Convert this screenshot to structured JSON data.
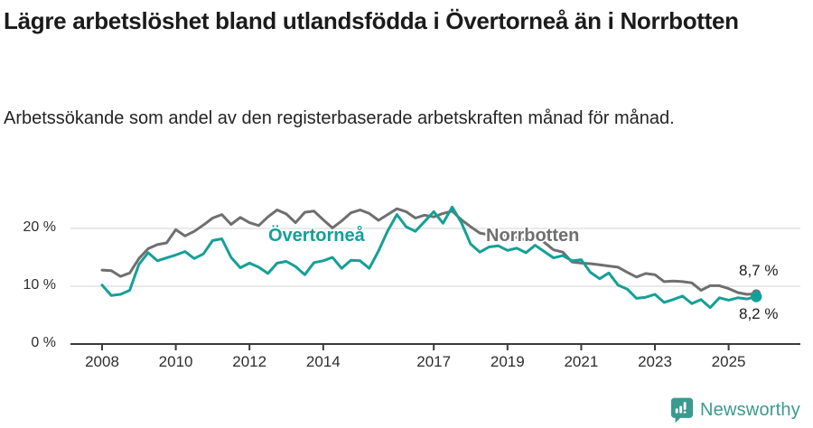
{
  "header": {
    "title": "Lägre arbetslöshet bland utlandsfödda i Övertorneå än i Norrbotten",
    "subtitle": "Arbetssökande som andel av den registerbaserade arbetskraften månad för månad."
  },
  "chart_data": {
    "type": "line",
    "title": "Lägre arbetslöshet bland utlandsfödda i Övertorneå än i Norrbotten",
    "xlabel": "",
    "ylabel": "Arbetssökande som andel av den registerbaserade arbetskraften",
    "x_unit": "year, quarterly sampled monthly series",
    "x_start": 2008.0,
    "x_step": 0.25,
    "x_end": 2025.75,
    "xlim": [
      2007.2,
      2026.4
    ],
    "ylim": [
      0,
      26
    ],
    "grid": "horizontal",
    "legend_position": "inline-labels",
    "x_ticks": [
      2008,
      2010,
      2012,
      2014,
      2017,
      2019,
      2021,
      2023,
      2025
    ],
    "y_ticks": [
      {
        "value": 0,
        "label": "0 %"
      },
      {
        "value": 10,
        "label": "10 %"
      },
      {
        "value": 20,
        "label": "20 %"
      }
    ],
    "series": [
      {
        "name": "Norrbotten",
        "color": "#6f6f6f",
        "end_label": "8,7 %",
        "end_value": 8.7,
        "values": [
          12.8,
          12.7,
          11.7,
          12.3,
          14.8,
          16.5,
          17.2,
          17.5,
          19.8,
          18.7,
          19.5,
          20.6,
          21.8,
          22.4,
          20.7,
          21.9,
          21.0,
          20.5,
          22.0,
          23.2,
          22.5,
          21.0,
          22.8,
          23.0,
          21.5,
          20.1,
          21.3,
          22.7,
          23.2,
          22.6,
          21.4,
          22.4,
          23.4,
          22.9,
          21.8,
          22.3,
          22.0,
          22.6,
          23.0,
          21.5,
          20.3,
          19.2,
          18.9,
          19.0,
          18.8,
          18.4,
          18.0,
          18.6,
          17.6,
          16.3,
          15.9,
          14.2,
          14.0,
          13.9,
          13.7,
          13.5,
          13.3,
          12.4,
          11.6,
          12.2,
          12.0,
          10.8,
          10.9,
          10.8,
          10.6,
          9.3,
          10.1,
          10.1,
          9.6,
          8.9,
          8.6,
          8.7
        ]
      },
      {
        "name": "Övertorneå",
        "color": "#14a096",
        "end_label": "8,2 %",
        "end_value": 8.2,
        "values": [
          10.2,
          8.4,
          8.6,
          9.3,
          13.8,
          15.8,
          14.4,
          14.9,
          15.4,
          16.0,
          14.8,
          15.6,
          17.9,
          18.2,
          15.0,
          13.2,
          14.0,
          13.3,
          12.2,
          14.0,
          14.3,
          13.4,
          12.0,
          14.1,
          14.4,
          15.0,
          13.1,
          14.5,
          14.4,
          13.1,
          16.1,
          19.6,
          22.4,
          20.3,
          19.5,
          21.2,
          22.9,
          20.9,
          23.7,
          21.0,
          17.3,
          15.9,
          16.8,
          17.0,
          16.2,
          16.6,
          15.8,
          17.1,
          16.0,
          14.9,
          15.3,
          14.4,
          14.6,
          12.4,
          11.3,
          12.3,
          10.2,
          9.5,
          7.9,
          8.1,
          8.6,
          7.2,
          7.7,
          8.3,
          7.0,
          7.7,
          6.3,
          8.0,
          7.6,
          8.0,
          7.8,
          8.2
        ]
      }
    ]
  },
  "footer": {
    "brand": "Newsworthy"
  },
  "colors": {
    "accent_teal": "#14a096",
    "line_gray": "#6f6f6f",
    "gridline": "#dcdcdc",
    "axis": "#3b3b3b",
    "text_dark": "#1b1b1b",
    "brand_teal": "#3a9a90"
  }
}
